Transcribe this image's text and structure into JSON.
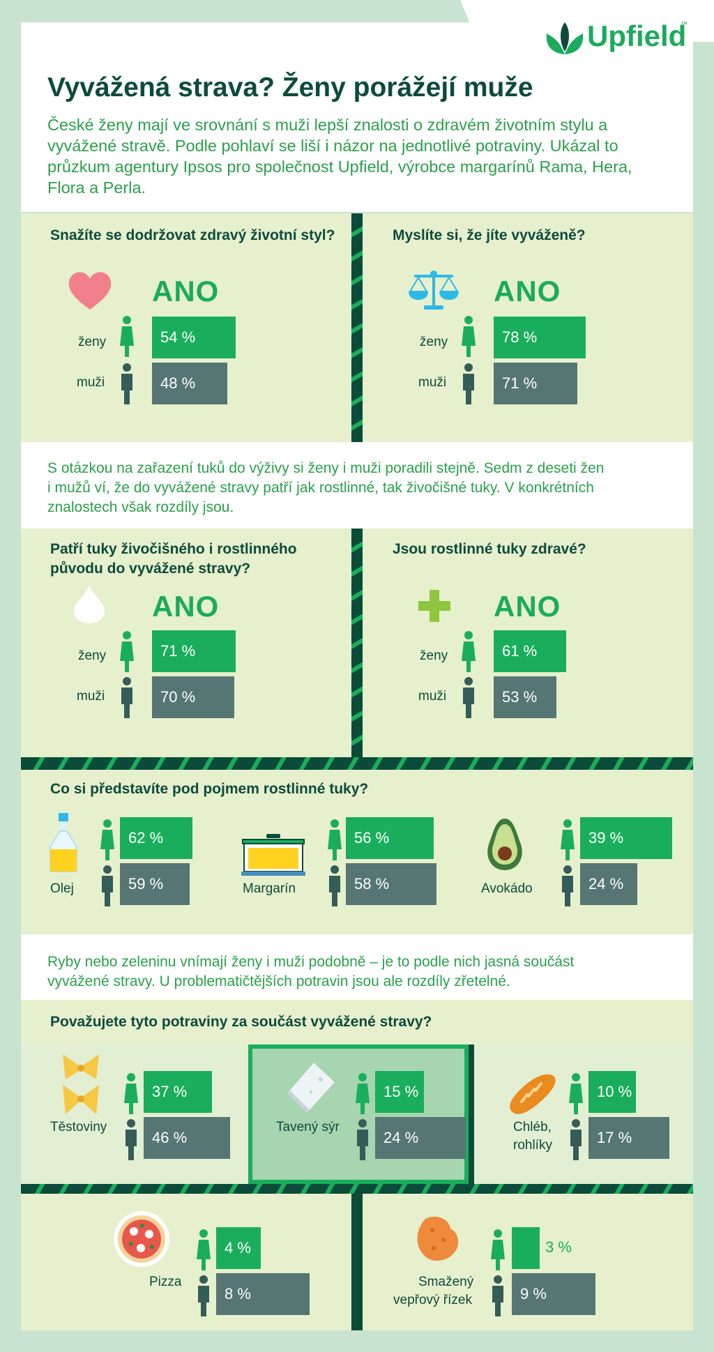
{
  "logo": {
    "text": "Upfield",
    "tm": "™"
  },
  "title": "Vyvážená strava? Ženy porážejí muže",
  "intro_lines": [
    "České ženy mají ve srovnání s muži lepší znalosti o zdravém životním stylu a",
    "vyvážené stravě. Podle pohlaví se liší i názor na jednotlivé potraviny. Ukázal to",
    "průzkum agentury Ipsos pro společnost Upfield, výrobce margarínů Rama, Hera,",
    "Flora a Perla."
  ],
  "labels": {
    "ano": "ANO",
    "women": "ženy",
    "men": "muži"
  },
  "questions": [
    {
      "text": [
        "Snažíte se dodržovat zdravý životní styl?"
      ],
      "icon": "heart-icon",
      "women_pct": 54,
      "men_pct": 48,
      "women": "54 %",
      "men": "48 %"
    },
    {
      "text": [
        "Myslíte si, že jíte vyváženě?"
      ],
      "icon": "scales-icon",
      "women_pct": 78,
      "men_pct": 71,
      "women": "78 %",
      "men": "71 %"
    },
    {
      "text": [
        "Patří tuky živočišného i rostlinného",
        "původu do vyvážené stravy?"
      ],
      "icon": "drop-icon",
      "women_pct": 71,
      "men_pct": 70,
      "women": "71 %",
      "men": "70 %"
    },
    {
      "text": [
        "Jsou rostlinné tuky zdravé?"
      ],
      "icon": "plus-icon",
      "women_pct": 61,
      "men_pct": 53,
      "women": "61 %",
      "men": "53 %"
    }
  ],
  "mid_text_lines": [
    "S otázkou na zařazení tuků do výživy si ženy i muži poradili stejně. Sedm z deseti žen",
    "i mužů ví, že do vyvážené stravy patří jak rostlinné, tak živočišné tuky. V konkrétních",
    "znalostech však rozdíly jsou."
  ],
  "fats": {
    "title": "Co si představíte pod pojmem rostlinné tuky?",
    "items": [
      {
        "label": "Olej",
        "icon": "oil-bottle-icon",
        "women_pct": 62,
        "men_pct": 59,
        "women": "62 %",
        "men": "59 %"
      },
      {
        "label": "Margarín",
        "icon": "margarine-tub-icon",
        "women_pct": 56,
        "men_pct": 58,
        "women": "56 %",
        "men": "58 %"
      },
      {
        "label": "Avokádo",
        "icon": "avocado-icon",
        "women_pct": 39,
        "men_pct": 24,
        "women": "39 %",
        "men": "24 %"
      }
    ]
  },
  "fish_text_lines": [
    "Ryby nebo zeleninu vnímají ženy i muži podobně – je to podle nich jasná součást",
    "vyvážené stravy. U problematičtějších potravin jsou ale rozdíly zřetelné."
  ],
  "foods": {
    "title": "Považujete tyto potraviny za součást vyvážené stravy?",
    "items": [
      {
        "label": [
          "Těstoviny"
        ],
        "icon": "pasta-icon",
        "women_pct": 37,
        "men_pct": 46,
        "women": "37 %",
        "men": "46 %"
      },
      {
        "label": [
          "Tavený sýr"
        ],
        "icon": "cheese-icon",
        "women_pct": 15,
        "men_pct": 24,
        "women": "15 %",
        "men": "24 %"
      },
      {
        "label": [
          "Chléb,",
          "rohlíky"
        ],
        "icon": "bread-icon",
        "women_pct": 10,
        "men_pct": 17,
        "women": "10 %",
        "men": "17 %"
      },
      {
        "label": [
          "Pizza"
        ],
        "icon": "pizza-icon",
        "women_pct": 4,
        "men_pct": 8,
        "women": "4 %",
        "men": "8 %"
      },
      {
        "label": [
          "Smažený",
          "vepřový řízek"
        ],
        "icon": "schnitzel-icon",
        "women_pct": 3,
        "men_pct": 9,
        "women": "3 %",
        "men": "9 %"
      }
    ]
  },
  "colors": {
    "women": "#1aae5c",
    "men": "#557673",
    "dark": "#0b4b3a",
    "panel": "#e7f0cd",
    "accent_text": "#2aa04a"
  }
}
